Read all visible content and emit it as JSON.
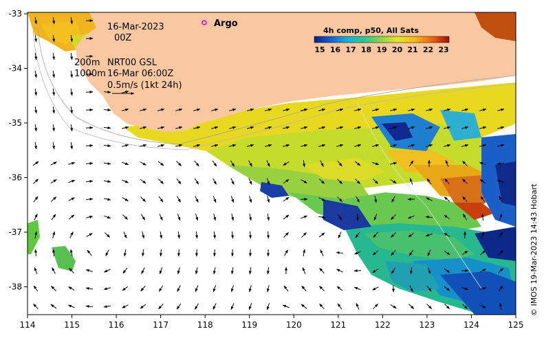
{
  "map": {
    "date_line": "16-Mar-2023",
    "time_line": "00Z",
    "depth_line_1": "200m",
    "depth_line_2": "1000m",
    "model_label": "NRT00 GSL",
    "model_time": "16-Mar 06:00Z",
    "scale_label": "0.5m/s (1kt 24h)",
    "argo_label": "Argo",
    "legend_title": "4h comp, p50, All Sats",
    "legend_ticks": [
      "15",
      "16",
      "17",
      "18",
      "19",
      "20",
      "21",
      "22",
      "23"
    ],
    "credit": "© IMOS 19-Mar-2023 14:43 Hobart",
    "x_ticks": [
      "114",
      "115",
      "116",
      "117",
      "118",
      "119",
      "120",
      "121",
      "122",
      "123",
      "124",
      "125"
    ],
    "y_ticks": [
      "-33",
      "-34",
      "-35",
      "-36",
      "-37",
      "-38"
    ],
    "colors": {
      "land": "#fac8a0",
      "argo_marker": "#e000e0",
      "arrows": "#000000"
    }
  }
}
